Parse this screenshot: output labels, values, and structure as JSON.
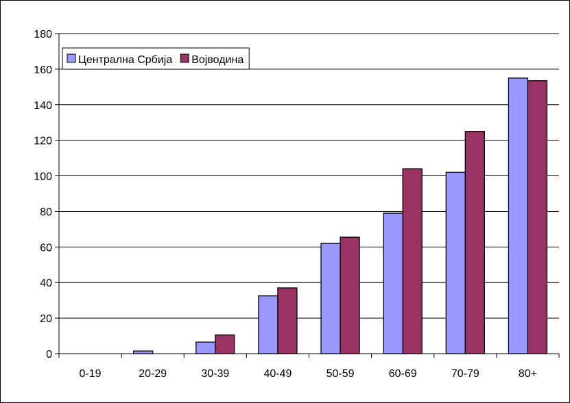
{
  "chart_data": {
    "type": "bar",
    "categories": [
      "0-19",
      "20-29",
      "30-39",
      "40-49",
      "50-59",
      "60-69",
      "70-79",
      "80+"
    ],
    "series": [
      {
        "name": "Централна Србија",
        "color": "#9999FF",
        "values": [
          0,
          1.5,
          6.5,
          32.5,
          62,
          79,
          102,
          155
        ]
      },
      {
        "name": "Војводина",
        "color": "#993366",
        "values": [
          0,
          0,
          10.5,
          37,
          65.5,
          104,
          125,
          153.5
        ]
      }
    ],
    "y_ticks": [
      "0",
      "20",
      "40",
      "60",
      "80",
      "100",
      "120",
      "140",
      "160",
      "180"
    ],
    "ylim": [
      0,
      180
    ],
    "grid": true,
    "legend_position": "top-left"
  }
}
